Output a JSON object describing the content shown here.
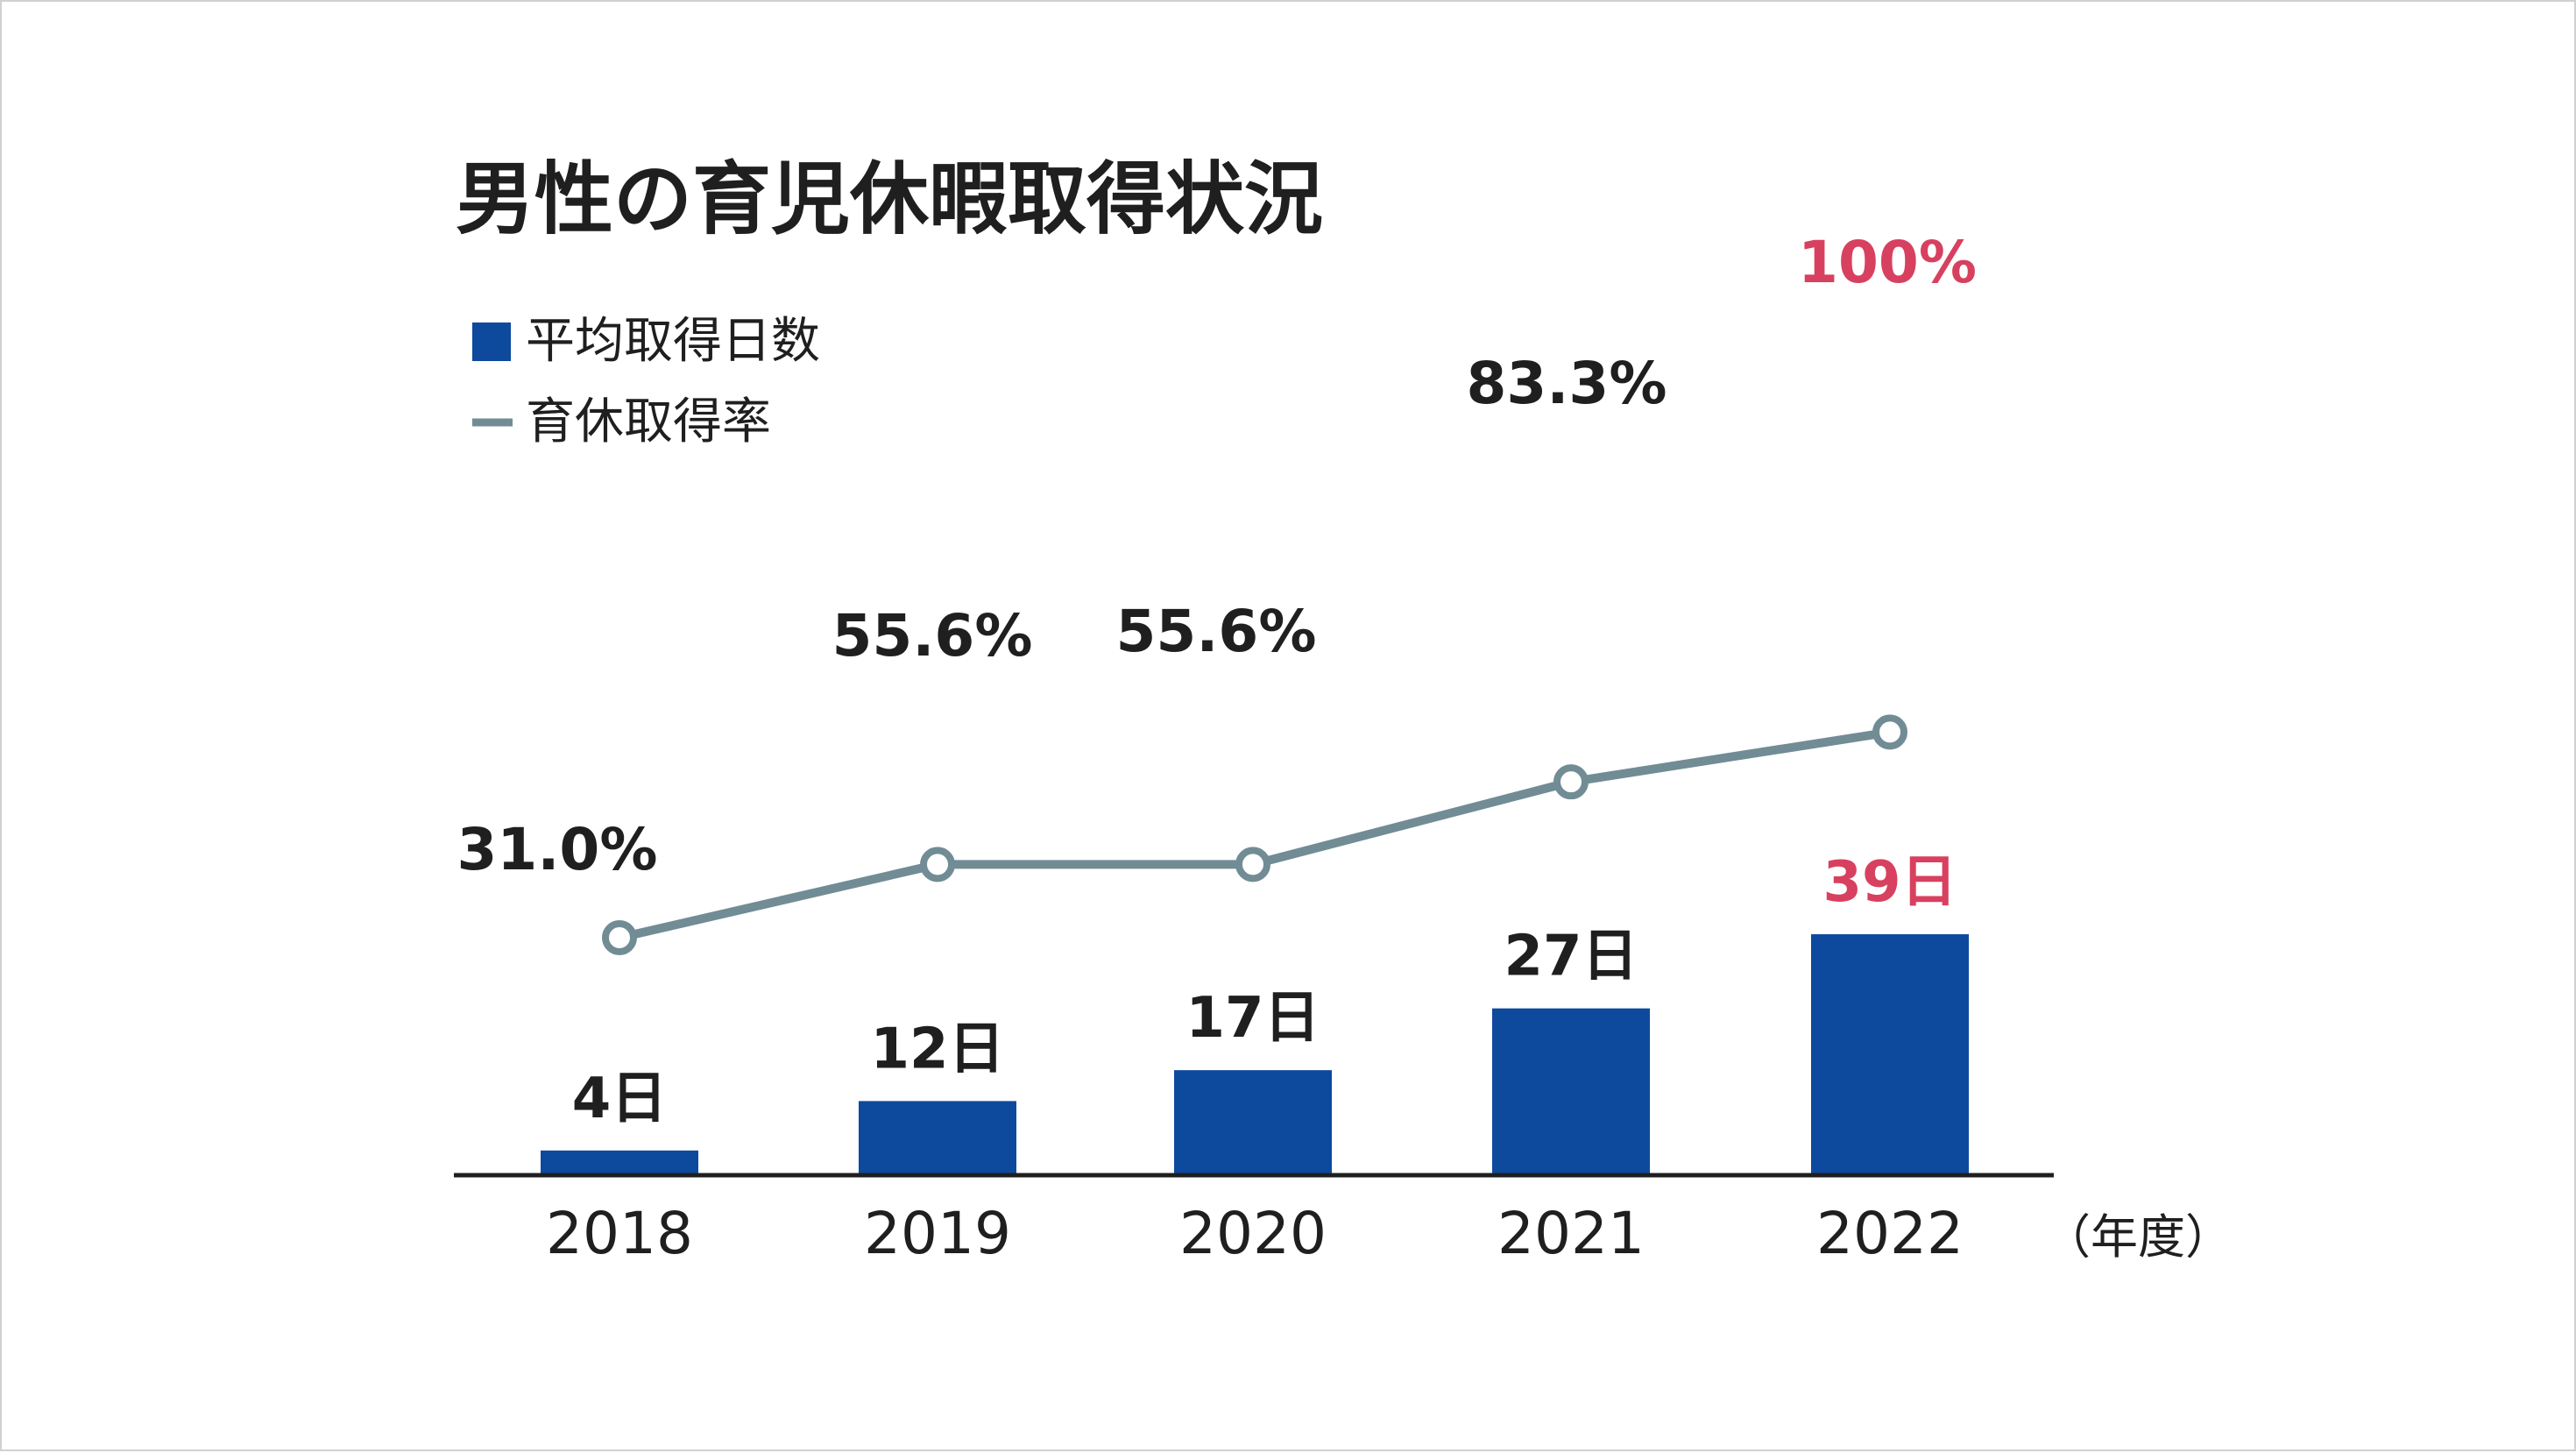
{
  "colors": {
    "bar": "#0d4a9d",
    "line": "#718c94",
    "text": "#1f1f1f",
    "highlight": "#d8405f",
    "axis": "#1f1f1f",
    "marker_fill": "#ffffff"
  },
  "chart_data": {
    "type": "bar",
    "title": "男性の育児休暇取得状況",
    "categories": [
      "2018",
      "2019",
      "2020",
      "2021",
      "2022"
    ],
    "x_unit_label": "（年度）",
    "legend": {
      "placement": "top-left",
      "entries": [
        {
          "label": "平均取得日数",
          "symbol": "square"
        },
        {
          "label": "育休取得率",
          "symbol": "line"
        }
      ]
    },
    "series": [
      {
        "name": "平均取得日数",
        "type": "bar",
        "values": [
          4,
          12,
          17,
          27,
          39
        ],
        "labels": [
          "4日",
          "12日",
          "17日",
          "27日",
          "39日"
        ],
        "highlight_index": 4
      },
      {
        "name": "育休取得率",
        "type": "line",
        "values": [
          31.0,
          55.6,
          55.6,
          83.3,
          100
        ],
        "labels": [
          "31.0%",
          "55.6%",
          "55.6%",
          "83.3%",
          "100%"
        ],
        "highlight_index": 4
      }
    ],
    "grid": false
  }
}
